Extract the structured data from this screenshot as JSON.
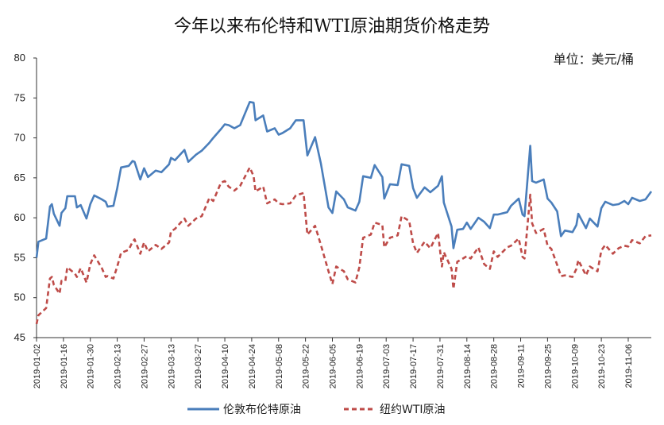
{
  "chart_data": {
    "type": "line",
    "title": "今年以来布伦特和WTI原油期货价格走势",
    "unit_label": "单位：美元/桶",
    "xlabel": "",
    "ylabel": "",
    "ylim": [
      45,
      80
    ],
    "yticks": [
      "45",
      "50",
      "55",
      "60",
      "65",
      "70",
      "75",
      "80"
    ],
    "xlim": [
      "2019-01-02",
      "2019-11-18"
    ],
    "xticks": [
      "2019-01-02",
      "2019-01-16",
      "2019-01-30",
      "2019-02-13",
      "2019-02-27",
      "2019-03-13",
      "2019-03-27",
      "2019-04-10",
      "2019-04-24",
      "2019-05-08",
      "2019-05-22",
      "2019-06-05",
      "2019-06-19",
      "2019-07-03",
      "2019-07-17",
      "2019-07-31",
      "2019-08-14",
      "2019-08-28",
      "2019-09-11",
      "2019-09-25",
      "2019-10-09",
      "2019-10-23",
      "2019-11-06"
    ],
    "grid": false,
    "legend_position": "bottom",
    "colors": {
      "brent": "#4a7ebb",
      "wti": "#be4b48"
    },
    "series": [
      {
        "name": "伦敦布伦特原油",
        "style": "solid",
        "points": [
          [
            "2019-01-02",
            55.0
          ],
          [
            "2019-01-03",
            57.0
          ],
          [
            "2019-01-07",
            57.4
          ],
          [
            "2019-01-09",
            61.4
          ],
          [
            "2019-01-10",
            61.7
          ],
          [
            "2019-01-11",
            60.5
          ],
          [
            "2019-01-14",
            59.0
          ],
          [
            "2019-01-15",
            60.6
          ],
          [
            "2019-01-17",
            61.2
          ],
          [
            "2019-01-18",
            62.7
          ],
          [
            "2019-01-22",
            62.7
          ],
          [
            "2019-01-23",
            61.3
          ],
          [
            "2019-01-25",
            61.6
          ],
          [
            "2019-01-28",
            59.9
          ],
          [
            "2019-01-30",
            61.7
          ],
          [
            "2019-02-01",
            62.8
          ],
          [
            "2019-02-05",
            62.3
          ],
          [
            "2019-02-07",
            62.0
          ],
          [
            "2019-02-08",
            61.4
          ],
          [
            "2019-02-11",
            61.5
          ],
          [
            "2019-02-13",
            63.7
          ],
          [
            "2019-02-15",
            66.3
          ],
          [
            "2019-02-19",
            66.5
          ],
          [
            "2019-02-21",
            67.1
          ],
          [
            "2019-02-22",
            67.0
          ],
          [
            "2019-02-25",
            64.8
          ],
          [
            "2019-02-27",
            66.2
          ],
          [
            "2019-03-01",
            65.1
          ],
          [
            "2019-03-05",
            65.9
          ],
          [
            "2019-03-08",
            65.7
          ],
          [
            "2019-03-12",
            66.7
          ],
          [
            "2019-03-13",
            67.5
          ],
          [
            "2019-03-15",
            67.2
          ],
          [
            "2019-03-20",
            68.5
          ],
          [
            "2019-03-22",
            67.0
          ],
          [
            "2019-03-26",
            67.9
          ],
          [
            "2019-03-29",
            68.4
          ],
          [
            "2019-04-02",
            69.4
          ],
          [
            "2019-04-04",
            70.0
          ],
          [
            "2019-04-08",
            71.1
          ],
          [
            "2019-04-10",
            71.7
          ],
          [
            "2019-04-12",
            71.6
          ],
          [
            "2019-04-15",
            71.2
          ],
          [
            "2019-04-18",
            71.6
          ],
          [
            "2019-04-23",
            74.5
          ],
          [
            "2019-04-25",
            74.4
          ],
          [
            "2019-04-26",
            72.2
          ],
          [
            "2019-04-30",
            72.8
          ],
          [
            "2019-05-02",
            70.8
          ],
          [
            "2019-05-06",
            71.2
          ],
          [
            "2019-05-08",
            70.4
          ],
          [
            "2019-05-10",
            70.6
          ],
          [
            "2019-05-14",
            71.2
          ],
          [
            "2019-05-17",
            72.2
          ],
          [
            "2019-05-21",
            72.2
          ],
          [
            "2019-05-23",
            67.8
          ],
          [
            "2019-05-27",
            70.1
          ],
          [
            "2019-05-30",
            66.8
          ],
          [
            "2019-06-03",
            61.3
          ],
          [
            "2019-06-05",
            60.6
          ],
          [
            "2019-06-07",
            63.3
          ],
          [
            "2019-06-11",
            62.3
          ],
          [
            "2019-06-13",
            61.3
          ],
          [
            "2019-06-17",
            60.9
          ],
          [
            "2019-06-19",
            62.0
          ],
          [
            "2019-06-21",
            65.2
          ],
          [
            "2019-06-25",
            65.0
          ],
          [
            "2019-06-27",
            66.6
          ],
          [
            "2019-07-01",
            65.1
          ],
          [
            "2019-07-02",
            62.4
          ],
          [
            "2019-07-05",
            64.2
          ],
          [
            "2019-07-09",
            64.1
          ],
          [
            "2019-07-11",
            66.7
          ],
          [
            "2019-07-15",
            66.5
          ],
          [
            "2019-07-17",
            63.7
          ],
          [
            "2019-07-19",
            62.5
          ],
          [
            "2019-07-23",
            63.8
          ],
          [
            "2019-07-26",
            63.2
          ],
          [
            "2019-07-30",
            64.0
          ],
          [
            "2019-08-01",
            65.2
          ],
          [
            "2019-08-02",
            61.9
          ],
          [
            "2019-08-06",
            58.9
          ],
          [
            "2019-08-07",
            56.2
          ],
          [
            "2019-08-09",
            58.5
          ],
          [
            "2019-08-12",
            58.6
          ],
          [
            "2019-08-14",
            59.4
          ],
          [
            "2019-08-16",
            58.6
          ],
          [
            "2019-08-20",
            60.0
          ],
          [
            "2019-08-23",
            59.5
          ],
          [
            "2019-08-26",
            58.7
          ],
          [
            "2019-08-28",
            60.4
          ],
          [
            "2019-08-30",
            60.4
          ],
          [
            "2019-09-04",
            60.7
          ],
          [
            "2019-09-06",
            61.5
          ],
          [
            "2019-09-10",
            62.4
          ],
          [
            "2019-09-12",
            60.4
          ],
          [
            "2019-09-13",
            60.2
          ],
          [
            "2019-09-16",
            69.0
          ],
          [
            "2019-09-17",
            64.6
          ],
          [
            "2019-09-19",
            64.4
          ],
          [
            "2019-09-23",
            64.8
          ],
          [
            "2019-09-25",
            62.4
          ],
          [
            "2019-09-27",
            61.9
          ],
          [
            "2019-09-30",
            60.8
          ],
          [
            "2019-10-02",
            57.7
          ],
          [
            "2019-10-04",
            58.4
          ],
          [
            "2019-10-08",
            58.2
          ],
          [
            "2019-10-10",
            59.1
          ],
          [
            "2019-10-11",
            60.5
          ],
          [
            "2019-10-15",
            58.7
          ],
          [
            "2019-10-17",
            59.9
          ],
          [
            "2019-10-21",
            58.9
          ],
          [
            "2019-10-23",
            61.2
          ],
          [
            "2019-10-25",
            62.0
          ],
          [
            "2019-10-29",
            61.6
          ],
          [
            "2019-11-01",
            61.7
          ],
          [
            "2019-11-04",
            62.1
          ],
          [
            "2019-11-06",
            61.7
          ],
          [
            "2019-11-08",
            62.5
          ],
          [
            "2019-11-12",
            62.1
          ],
          [
            "2019-11-15",
            62.3
          ],
          [
            "2019-11-18",
            63.3
          ]
        ]
      },
      {
        "name": "纽约WTI原油",
        "style": "dashed",
        "points": [
          [
            "2019-01-02",
            46.7
          ],
          [
            "2019-01-03",
            47.8
          ],
          [
            "2019-01-07",
            48.7
          ],
          [
            "2019-01-09",
            52.4
          ],
          [
            "2019-01-10",
            52.6
          ],
          [
            "2019-01-11",
            51.6
          ],
          [
            "2019-01-14",
            50.5
          ],
          [
            "2019-01-15",
            52.1
          ],
          [
            "2019-01-17",
            52.1
          ],
          [
            "2019-01-18",
            53.8
          ],
          [
            "2019-01-22",
            53.0
          ],
          [
            "2019-01-23",
            52.6
          ],
          [
            "2019-01-25",
            53.7
          ],
          [
            "2019-01-28",
            51.9
          ],
          [
            "2019-01-30",
            54.2
          ],
          [
            "2019-02-01",
            55.3
          ],
          [
            "2019-02-05",
            53.7
          ],
          [
            "2019-02-07",
            52.6
          ],
          [
            "2019-02-08",
            52.7
          ],
          [
            "2019-02-11",
            52.4
          ],
          [
            "2019-02-13",
            53.9
          ],
          [
            "2019-02-15",
            55.6
          ],
          [
            "2019-02-19",
            56.0
          ],
          [
            "2019-02-21",
            57.0
          ],
          [
            "2019-02-22",
            57.3
          ],
          [
            "2019-02-25",
            55.5
          ],
          [
            "2019-02-27",
            56.9
          ],
          [
            "2019-03-01",
            55.8
          ],
          [
            "2019-03-05",
            56.6
          ],
          [
            "2019-03-08",
            56.1
          ],
          [
            "2019-03-12",
            56.9
          ],
          [
            "2019-03-13",
            58.3
          ],
          [
            "2019-03-15",
            58.6
          ],
          [
            "2019-03-20",
            59.9
          ],
          [
            "2019-03-22",
            59.0
          ],
          [
            "2019-03-26",
            59.9
          ],
          [
            "2019-03-29",
            60.2
          ],
          [
            "2019-04-02",
            62.5
          ],
          [
            "2019-04-04",
            62.1
          ],
          [
            "2019-04-08",
            64.4
          ],
          [
            "2019-04-10",
            64.6
          ],
          [
            "2019-04-12",
            63.9
          ],
          [
            "2019-04-15",
            63.4
          ],
          [
            "2019-04-18",
            64.0
          ],
          [
            "2019-04-23",
            66.3
          ],
          [
            "2019-04-25",
            65.2
          ],
          [
            "2019-04-26",
            63.3
          ],
          [
            "2019-04-30",
            63.9
          ],
          [
            "2019-05-02",
            61.8
          ],
          [
            "2019-05-06",
            62.3
          ],
          [
            "2019-05-08",
            61.8
          ],
          [
            "2019-05-10",
            61.7
          ],
          [
            "2019-05-14",
            61.8
          ],
          [
            "2019-05-17",
            62.8
          ],
          [
            "2019-05-21",
            63.1
          ],
          [
            "2019-05-23",
            57.9
          ],
          [
            "2019-05-27",
            59.0
          ],
          [
            "2019-05-30",
            56.6
          ],
          [
            "2019-06-03",
            53.3
          ],
          [
            "2019-06-05",
            51.7
          ],
          [
            "2019-06-07",
            53.9
          ],
          [
            "2019-06-11",
            53.3
          ],
          [
            "2019-06-13",
            52.3
          ],
          [
            "2019-06-17",
            51.9
          ],
          [
            "2019-06-19",
            53.8
          ],
          [
            "2019-06-21",
            57.5
          ],
          [
            "2019-06-25",
            57.9
          ],
          [
            "2019-06-27",
            59.4
          ],
          [
            "2019-07-01",
            59.1
          ],
          [
            "2019-07-02",
            56.3
          ],
          [
            "2019-07-05",
            57.5
          ],
          [
            "2019-07-09",
            57.8
          ],
          [
            "2019-07-11",
            60.2
          ],
          [
            "2019-07-15",
            59.6
          ],
          [
            "2019-07-17",
            56.8
          ],
          [
            "2019-07-19",
            55.6
          ],
          [
            "2019-07-23",
            57.0
          ],
          [
            "2019-07-26",
            56.2
          ],
          [
            "2019-07-30",
            58.1
          ],
          [
            "2019-08-01",
            53.9
          ],
          [
            "2019-08-02",
            55.7
          ],
          [
            "2019-08-06",
            53.6
          ],
          [
            "2019-08-07",
            51.1
          ],
          [
            "2019-08-09",
            54.5
          ],
          [
            "2019-08-12",
            54.9
          ],
          [
            "2019-08-14",
            55.2
          ],
          [
            "2019-08-16",
            54.9
          ],
          [
            "2019-08-20",
            56.3
          ],
          [
            "2019-08-23",
            54.2
          ],
          [
            "2019-08-26",
            53.6
          ],
          [
            "2019-08-28",
            55.8
          ],
          [
            "2019-08-30",
            55.1
          ],
          [
            "2019-09-04",
            56.3
          ],
          [
            "2019-09-06",
            56.5
          ],
          [
            "2019-09-10",
            57.4
          ],
          [
            "2019-09-12",
            55.1
          ],
          [
            "2019-09-13",
            54.9
          ],
          [
            "2019-09-16",
            62.9
          ],
          [
            "2019-09-17",
            59.3
          ],
          [
            "2019-09-19",
            58.1
          ],
          [
            "2019-09-23",
            58.6
          ],
          [
            "2019-09-25",
            56.5
          ],
          [
            "2019-09-27",
            56.1
          ],
          [
            "2019-09-30",
            54.1
          ],
          [
            "2019-10-02",
            52.7
          ],
          [
            "2019-10-04",
            52.8
          ],
          [
            "2019-10-08",
            52.6
          ],
          [
            "2019-10-10",
            53.6
          ],
          [
            "2019-10-11",
            54.7
          ],
          [
            "2019-10-15",
            52.8
          ],
          [
            "2019-10-17",
            53.9
          ],
          [
            "2019-10-21",
            53.3
          ],
          [
            "2019-10-23",
            55.9
          ],
          [
            "2019-10-25",
            56.6
          ],
          [
            "2019-10-29",
            55.5
          ],
          [
            "2019-11-01",
            56.2
          ],
          [
            "2019-11-04",
            56.5
          ],
          [
            "2019-11-06",
            56.4
          ],
          [
            "2019-11-08",
            57.2
          ],
          [
            "2019-11-12",
            56.8
          ],
          [
            "2019-11-15",
            57.7
          ],
          [
            "2019-11-18",
            57.8
          ]
        ]
      }
    ]
  }
}
